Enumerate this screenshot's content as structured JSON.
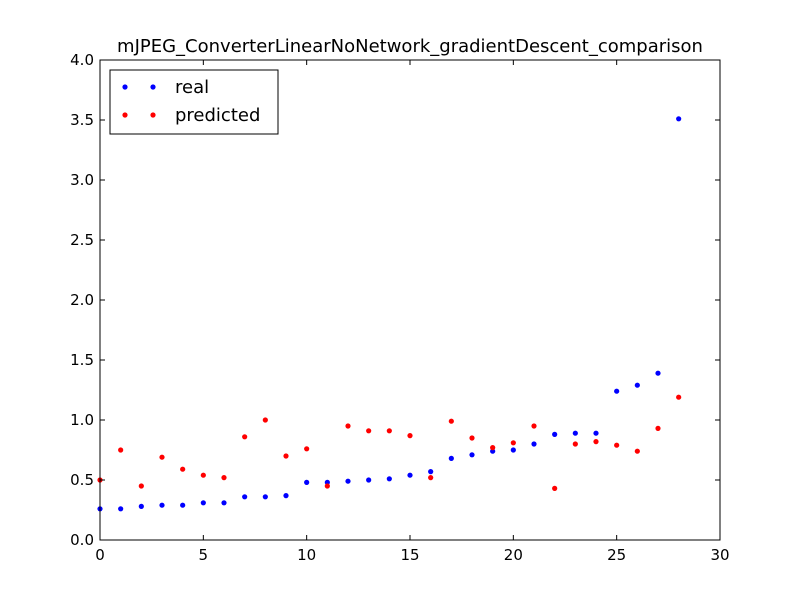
{
  "chart_data": {
    "type": "scatter",
    "title": "mJPEG_ConverterLinearNoNetwork_gradientDescent_comparison",
    "xlabel": "",
    "ylabel": "",
    "xlim": [
      0,
      30
    ],
    "ylim": [
      0.0,
      4.0
    ],
    "xticks": [
      "0",
      "5",
      "10",
      "15",
      "20",
      "25",
      "30"
    ],
    "yticks": [
      "0.0",
      "0.5",
      "1.0",
      "1.5",
      "2.0",
      "2.5",
      "3.0",
      "3.5",
      "4.0"
    ],
    "grid": false,
    "legend_position": "top-left",
    "x": [
      0,
      1,
      2,
      3,
      4,
      5,
      6,
      7,
      8,
      9,
      10,
      11,
      12,
      13,
      14,
      15,
      16,
      17,
      18,
      19,
      20,
      21,
      22,
      23,
      24,
      25,
      26,
      27,
      28
    ],
    "series": [
      {
        "name": "real",
        "color": "#0000ff",
        "values": [
          0.26,
          0.26,
          0.28,
          0.29,
          0.29,
          0.31,
          0.31,
          0.36,
          0.36,
          0.37,
          0.48,
          0.48,
          0.49,
          0.5,
          0.51,
          0.54,
          0.57,
          0.68,
          0.71,
          0.74,
          0.75,
          0.8,
          0.88,
          0.89,
          0.89,
          1.24,
          1.29,
          1.39,
          3.51
        ]
      },
      {
        "name": "predicted",
        "color": "#ff0000",
        "values": [
          0.5,
          0.75,
          0.45,
          0.69,
          0.59,
          0.54,
          0.52,
          0.86,
          1.0,
          0.7,
          0.76,
          0.45,
          0.95,
          0.91,
          0.91,
          0.87,
          0.52,
          0.99,
          0.85,
          0.77,
          0.81,
          0.95,
          0.43,
          0.8,
          0.82,
          0.79,
          0.74,
          0.93,
          1.19
        ]
      }
    ]
  }
}
